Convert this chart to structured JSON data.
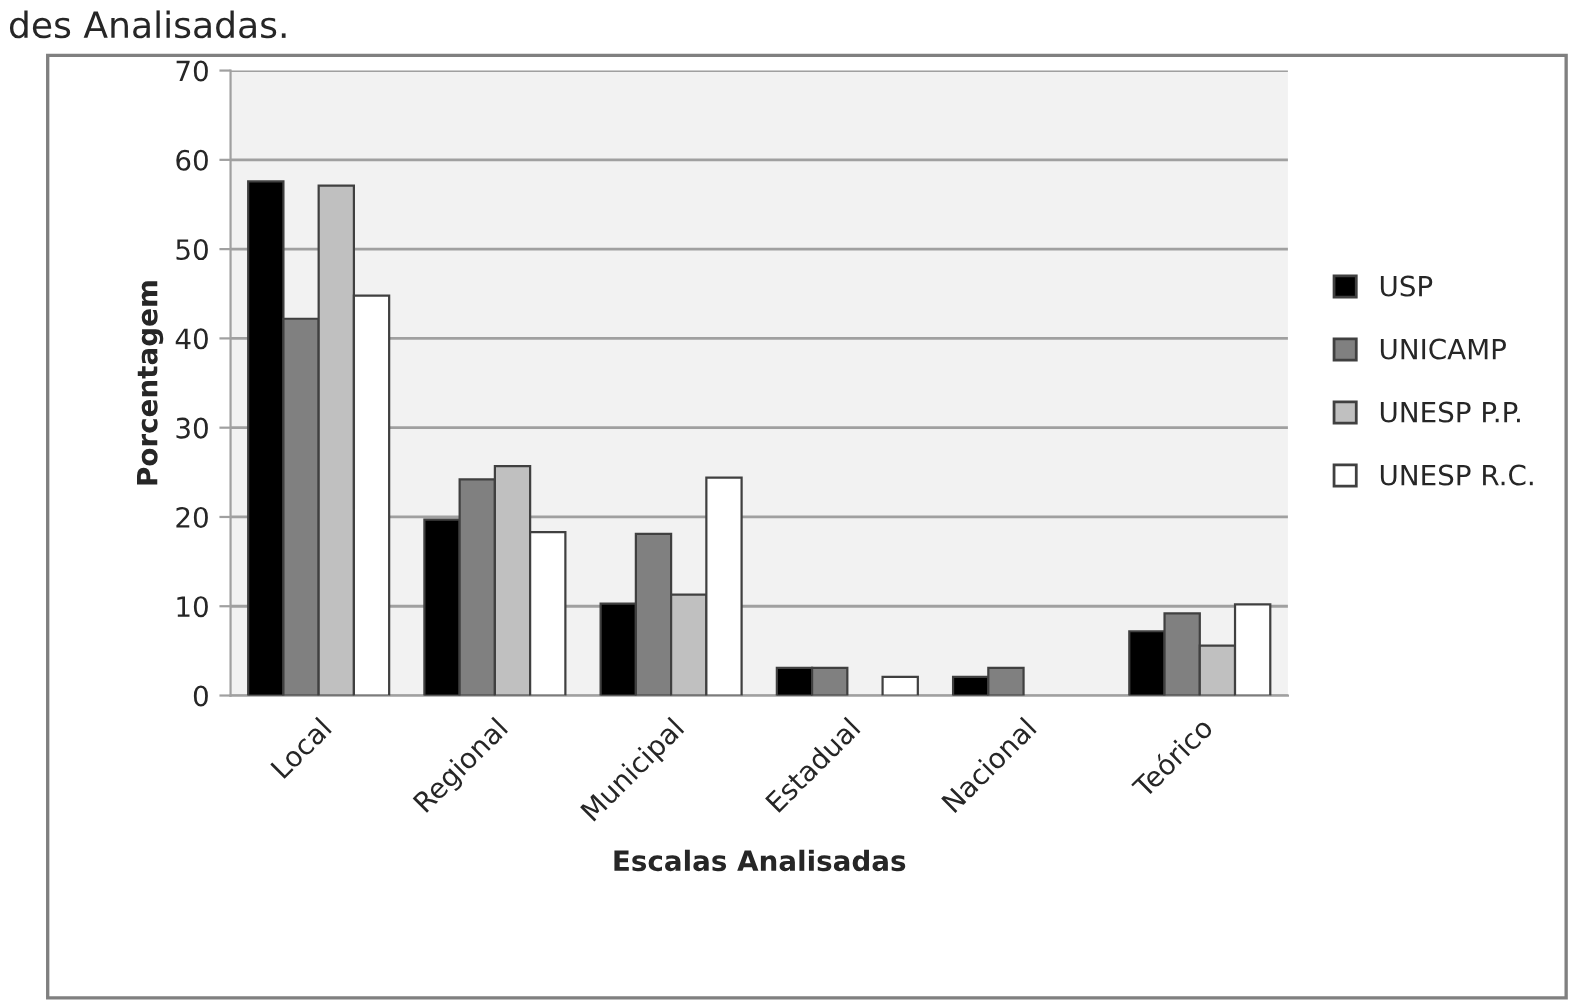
{
  "chart_data": {
    "type": "bar",
    "categories": [
      "Local",
      "Regional",
      "Municipal",
      "Estadual",
      "Nacional",
      "Teórico"
    ],
    "series": [
      {
        "name": "USP",
        "color": "#000000",
        "values": [
          57.6,
          19.7,
          10.3,
          3.1,
          2.1,
          7.2
        ]
      },
      {
        "name": "UNICAMP",
        "color": "#808080",
        "values": [
          42.2,
          24.2,
          18.1,
          3.1,
          3.1,
          9.2
        ]
      },
      {
        "name": "UNESP P.P.",
        "color": "#c0c0c0",
        "values": [
          57.1,
          25.7,
          11.3,
          null,
          null,
          5.6
        ]
      },
      {
        "name": "UNESP R.C.",
        "color": "#ffffff",
        "values": [
          44.8,
          18.3,
          24.4,
          2.1,
          null,
          10.2
        ]
      }
    ],
    "xlabel": "Escalas Analisadas",
    "ylabel": "Porcentagem",
    "ylim": [
      0,
      70
    ],
    "yticks": [
      0,
      10,
      20,
      30,
      40,
      50,
      60,
      70
    ],
    "grid": "y",
    "legend": "right",
    "annotations": [
      "des Analisadas."
    ]
  }
}
